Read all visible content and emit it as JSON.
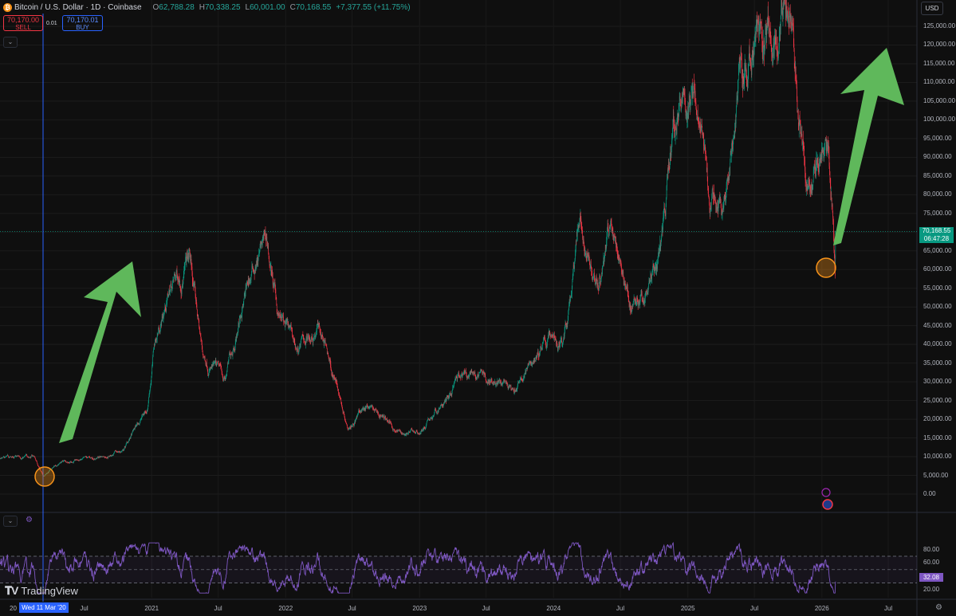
{
  "header": {
    "symbol_logo": "₿",
    "title": "Bitcoin / U.S. Dollar · 1D · Coinbase",
    "open_label": "O",
    "open": "62,788.28",
    "high_label": "H",
    "high": "70,338.25",
    "low_label": "L",
    "low": "60,001.00",
    "close_label": "C",
    "close": "70,168.55",
    "change": "+7,377.55 (+11.75%)"
  },
  "trade": {
    "sell_price": "70,170.00",
    "sell_label": "SELL",
    "spread": "0.01",
    "buy_price": "70,170.01",
    "buy_label": "BUY"
  },
  "controls": {
    "collapse_icon": "chevron-down-icon",
    "currency": "USD"
  },
  "price_axis": {
    "labels": [
      "125,000.00",
      "120,000.00",
      "115,000.00",
      "110,000.00",
      "105,000.00",
      "100,000.00",
      "95,000.00",
      "90,000.00",
      "85,000.00",
      "80,000.00",
      "75,000.00",
      "65,000.00",
      "60,000.00",
      "55,000.00",
      "50,000.00",
      "45,000.00",
      "40,000.00",
      "35,000.00",
      "30,000.00",
      "25,000.00",
      "20,000.00",
      "15,000.00",
      "10,000.00",
      "5,000.00",
      "0.00"
    ],
    "current_price": "70,168.55",
    "countdown": "06:47:28"
  },
  "rsi_axis": {
    "labels": [
      "80.00",
      "60.00",
      "40.00",
      "20.00"
    ],
    "current": "32.08"
  },
  "time_axis": {
    "partial_left": "20",
    "crosshair_date": "Wed 11 Mar '20",
    "labels": [
      "Jul",
      "2021",
      "Jul",
      "2022",
      "Jul",
      "2023",
      "Jul",
      "2024",
      "Jul",
      "2025",
      "Jul",
      "2026",
      "Jul"
    ]
  },
  "branding": "TradingView",
  "colors": {
    "up": "#089981",
    "down": "#f23645",
    "rsi": "#7e57c2",
    "arrow": "#5fb85b",
    "circle": "#f7931a",
    "crosshair": "#2962ff"
  },
  "chart_data": [
    {
      "type": "candlestick",
      "title": "Bitcoin / U.S. Dollar · 1D · Coinbase",
      "x_unit": "date",
      "ylim": [
        0,
        125000
      ],
      "approx_close_series": [
        [
          "2019-09-01",
          8000
        ],
        [
          "2020-02-15",
          10200
        ],
        [
          "2020-03-11",
          5000
        ],
        [
          "2020-05-01",
          8800
        ],
        [
          "2020-07-15",
          9200
        ],
        [
          "2020-10-15",
          11500
        ],
        [
          "2020-12-20",
          23000
        ],
        [
          "2021-01-08",
          40000
        ],
        [
          "2021-02-20",
          55000
        ],
        [
          "2021-04-14",
          63000
        ],
        [
          "2021-05-20",
          37000
        ],
        [
          "2021-07-20",
          30000
        ],
        [
          "2021-09-05",
          51000
        ],
        [
          "2021-10-20",
          64000
        ],
        [
          "2021-11-10",
          67500
        ],
        [
          "2021-12-10",
          48000
        ],
        [
          "2022-02-01",
          38000
        ],
        [
          "2022-04-01",
          46000
        ],
        [
          "2022-06-18",
          19000
        ],
        [
          "2022-08-15",
          24000
        ],
        [
          "2022-11-10",
          16500
        ],
        [
          "2022-12-31",
          16500
        ],
        [
          "2023-03-15",
          25000
        ],
        [
          "2023-04-15",
          30000
        ],
        [
          "2023-07-15",
          31000
        ],
        [
          "2023-09-15",
          26000
        ],
        [
          "2023-10-24",
          34000
        ],
        [
          "2023-12-31",
          43000
        ],
        [
          "2024-01-25",
          40000
        ],
        [
          "2024-03-14",
          73000
        ],
        [
          "2024-05-01",
          57000
        ],
        [
          "2024-06-05",
          71000
        ],
        [
          "2024-08-05",
          50000
        ],
        [
          "2024-09-06",
          53000
        ],
        [
          "2024-10-30",
          72000
        ],
        [
          "2024-11-22",
          99000
        ],
        [
          "2024-12-17",
          106000
        ],
        [
          "2025-02-01",
          99000
        ],
        [
          "2025-03-01",
          80000
        ],
        [
          "2025-04-07",
          75000
        ],
        [
          "2025-05-22",
          111000
        ],
        [
          "2025-07-14",
          122000
        ],
        [
          "2025-08-14",
          123000
        ],
        [
          "2025-10-06",
          126000
        ],
        [
          "2025-11-21",
          82000
        ],
        [
          "2026-01-14",
          97000
        ],
        [
          "2026-01-31",
          78000
        ],
        [
          "2026-02-06",
          60000
        ],
        [
          "2026-02-07",
          70168.55
        ]
      ],
      "last": {
        "open": 62788.28,
        "high": 70338.25,
        "low": 60001.0,
        "close": 70168.55
      }
    },
    {
      "type": "line",
      "title": "RSI",
      "ylim": [
        15,
        90
      ],
      "guides": [
        70,
        50,
        30
      ],
      "last": 32.08
    }
  ]
}
